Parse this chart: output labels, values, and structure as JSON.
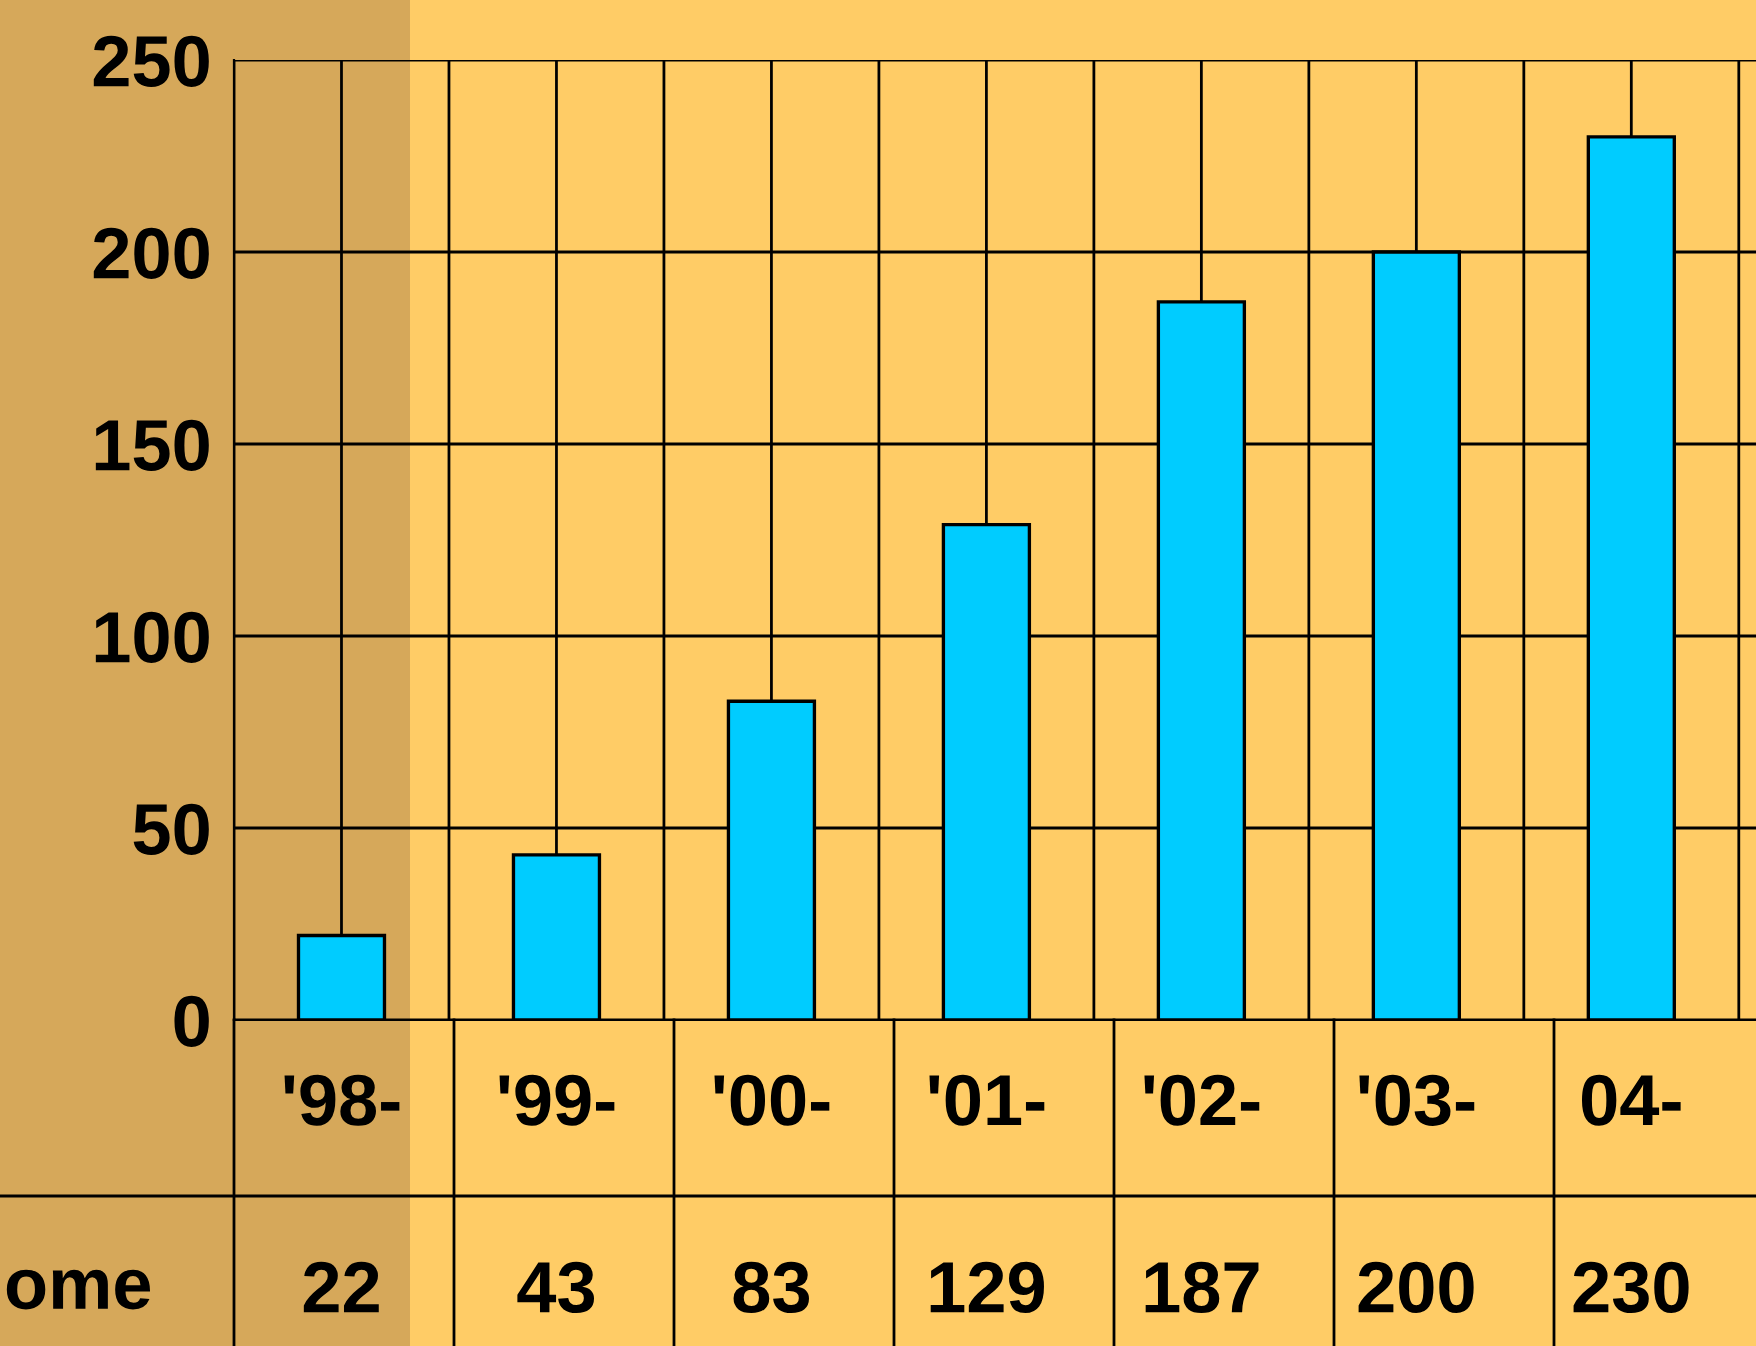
{
  "chart_data": {
    "type": "bar",
    "categories": [
      "'98-",
      "'99-",
      "'00-",
      "'01-",
      "'02-",
      "'03-",
      "04-"
    ],
    "series": [
      {
        "name": "ome",
        "color": "#00ccff",
        "values": [
          22,
          43,
          83,
          129,
          187,
          200,
          230
        ]
      }
    ],
    "ylim": [
      0,
      250
    ],
    "yticks": [
      0,
      50,
      100,
      150,
      200,
      250
    ],
    "grid": true,
    "data_labels": true
  }
}
